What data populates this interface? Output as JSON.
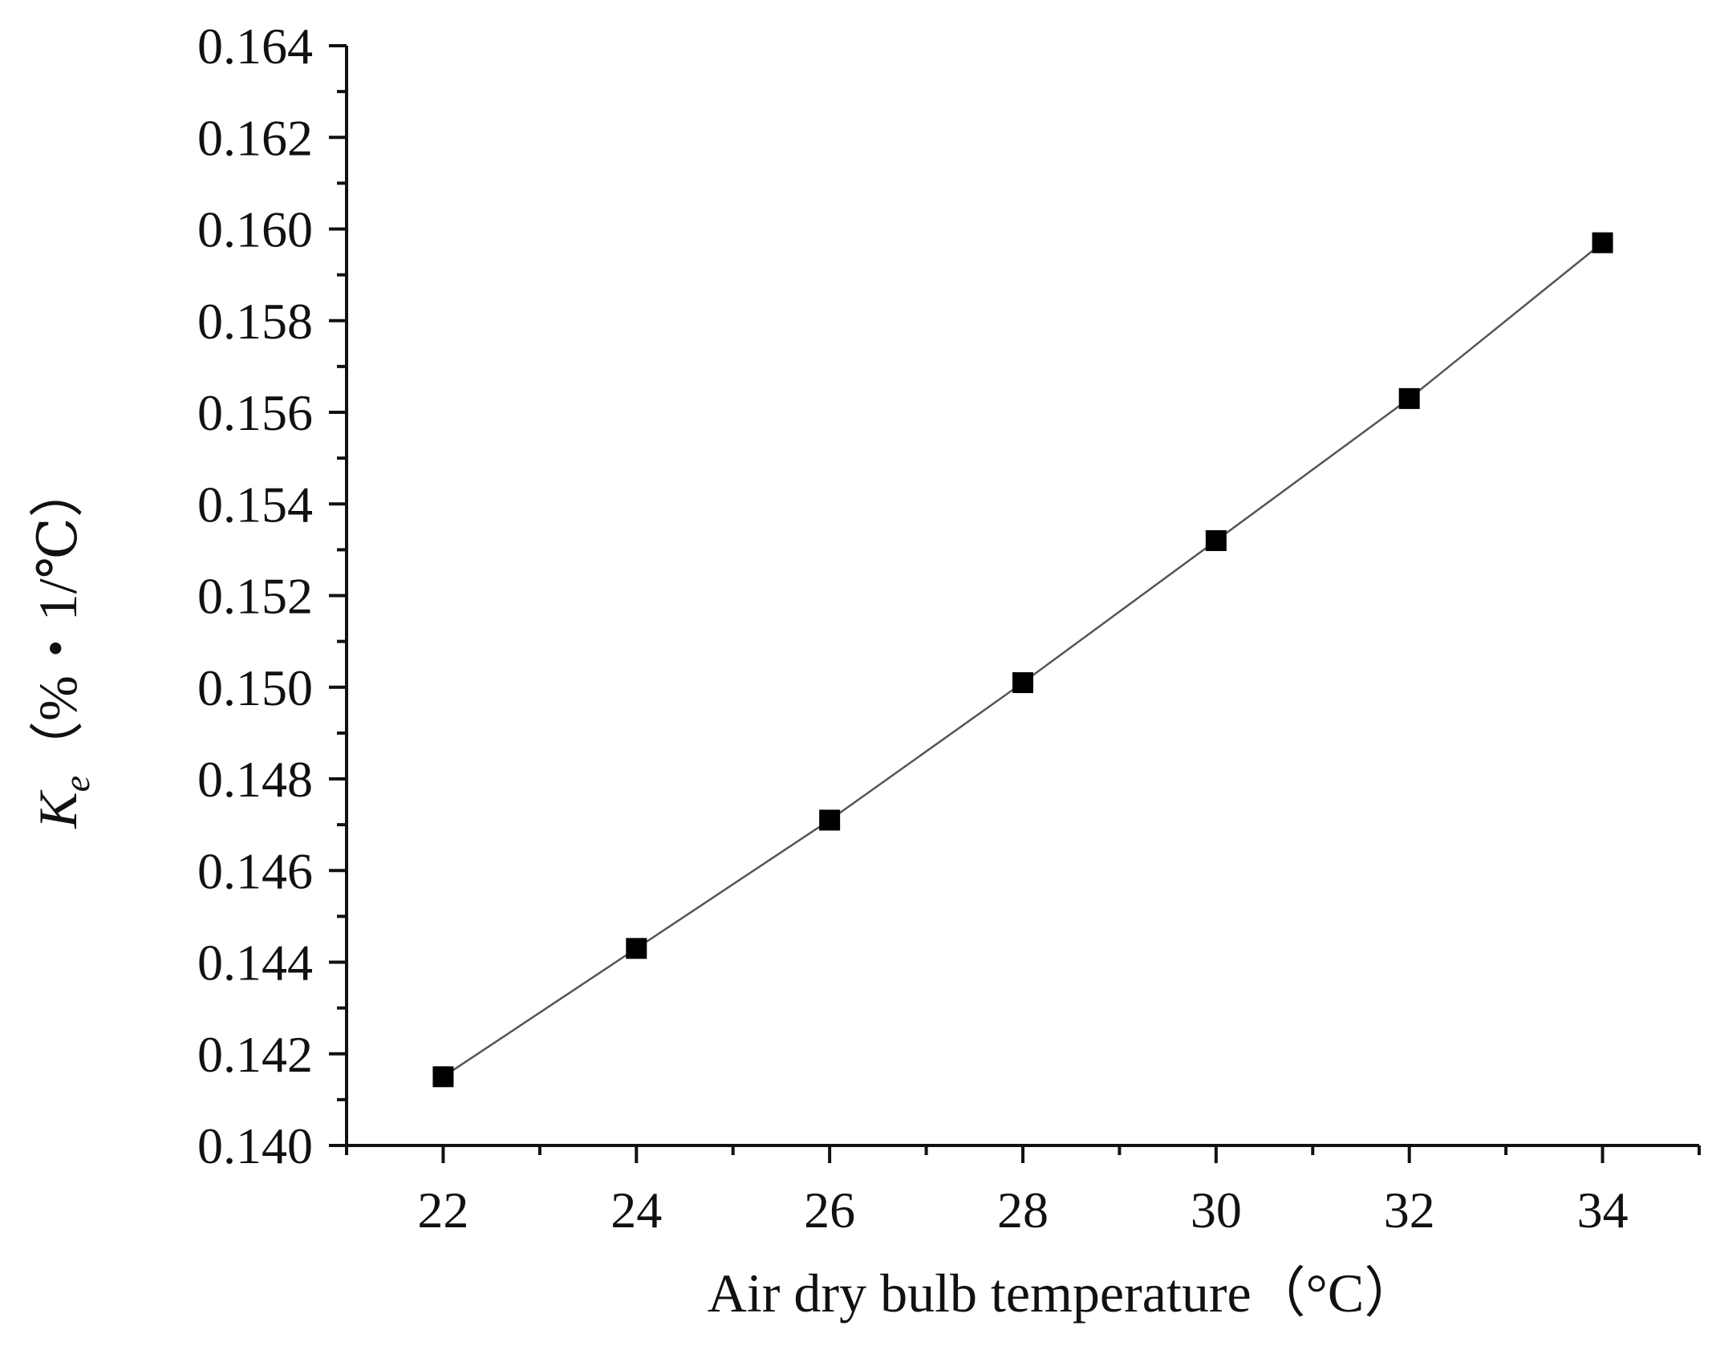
{
  "chart_data": {
    "type": "line",
    "title": "",
    "xlabel": "Air dry bulb temperature（°C）",
    "ylabel_symbol": "K",
    "ylabel_subscript": "e",
    "ylabel_unit": "（%・1/℃）",
    "xlim": [
      21,
      35
    ],
    "ylim": [
      0.14,
      0.164
    ],
    "x_major_ticks": [
      22,
      24,
      26,
      28,
      30,
      32,
      34
    ],
    "x_tick_labels": [
      "22",
      "24",
      "26",
      "28",
      "30",
      "32",
      "34"
    ],
    "x_minor_ticks": [
      21,
      23,
      25,
      27,
      29,
      31,
      33,
      35
    ],
    "y_major_ticks": [
      0.14,
      0.142,
      0.144,
      0.146,
      0.148,
      0.15,
      0.152,
      0.154,
      0.156,
      0.158,
      0.16,
      0.162,
      0.164
    ],
    "y_tick_labels": [
      "0.140",
      "0.142",
      "0.144",
      "0.146",
      "0.148",
      "0.150",
      "0.152",
      "0.154",
      "0.156",
      "0.158",
      "0.160",
      "0.162",
      "0.164"
    ],
    "grid": false,
    "marker": "square",
    "series": [
      {
        "x": [
          22,
          24,
          26,
          28,
          30,
          32,
          34
        ],
        "values": [
          0.1415,
          0.1443,
          0.1471,
          0.1501,
          0.1532,
          0.1563,
          0.1597
        ],
        "color": "#000000"
      }
    ]
  }
}
